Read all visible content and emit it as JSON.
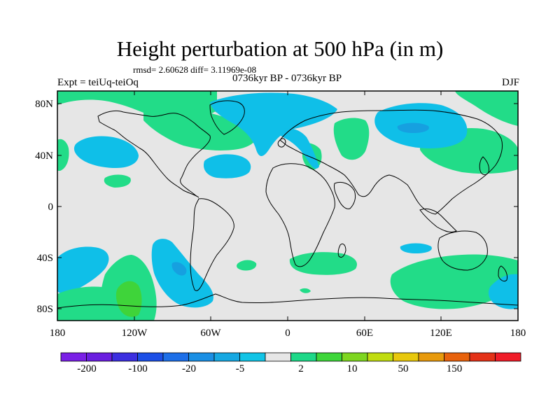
{
  "figure": {
    "title": "Height perturbation at 500 hPa (in m)",
    "stats_line": "rmsd= 2.60628 diff= 3.11969e-08",
    "left_label": "Expt = teiUq-teiOq",
    "center_label": "0736kyr BP - 0736kyr BP",
    "right_label": "DJF"
  },
  "map": {
    "y_ticks": [
      "80N",
      "40N",
      "0",
      "40S",
      "80S"
    ],
    "x_ticks": [
      "180",
      "120W",
      "60W",
      "0",
      "60E",
      "120E",
      "180"
    ],
    "background_color": "#e6e6e6",
    "colors": {
      "light_blue": "#0fbfe8",
      "mid_blue": "#16a0e0",
      "light_green": "#22dc88",
      "mid_green": "#3fd43a"
    }
  },
  "colorbar": {
    "labels": [
      "-200",
      "-100",
      "-20",
      "-5",
      "2",
      "10",
      "50",
      "150"
    ],
    "colors": [
      "#7a20e6",
      "#6a1ee0",
      "#3c2fe0",
      "#1c4fe6",
      "#1d6fe8",
      "#1a8fe4",
      "#16a8e2",
      "#12c4e6",
      "#e6e6e6",
      "#1ed888",
      "#3ed63a",
      "#7ed620",
      "#c0dc10",
      "#e8c80c",
      "#e89a0c",
      "#e8620c",
      "#e43218",
      "#f01c28"
    ]
  }
}
